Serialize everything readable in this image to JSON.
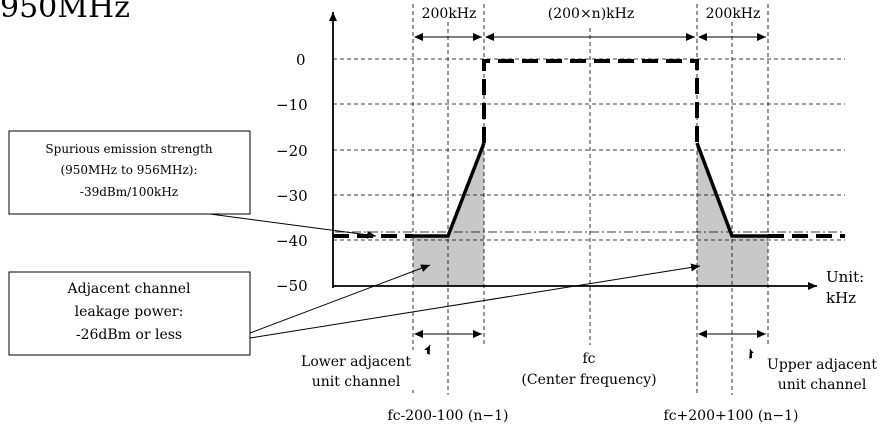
{
  "heading_fragment": "950MHz",
  "y_axis": {
    "ticks": [
      "0",
      "−10",
      "−20",
      "−30",
      "−40",
      "−50"
    ]
  },
  "x_unit": {
    "line1": "Unit:",
    "line2": "kHz"
  },
  "top_spans": {
    "left": "200kHz",
    "center": "(200×n)kHz",
    "right": "200kHz"
  },
  "spurious_box": {
    "line1": "Spurious emission strength",
    "line2": "(950MHz to 956MHz):",
    "line3": "-39dBm/100kHz"
  },
  "leakage_box": {
    "line1": "Adjacent channel",
    "line2": "leakage power:",
    "line3": "-26dBm or less"
  },
  "labels": {
    "lower_line1": "Lower adjacent",
    "lower_line2": "unit channel",
    "fc_line1": "fc",
    "fc_line2": "(Center frequency)",
    "upper_line1": "Upper adjacent",
    "upper_line2": "unit channel",
    "lower_freq": "fc-200-100 (n−1)",
    "upper_freq": "fc+200+100 (n−1)"
  }
}
